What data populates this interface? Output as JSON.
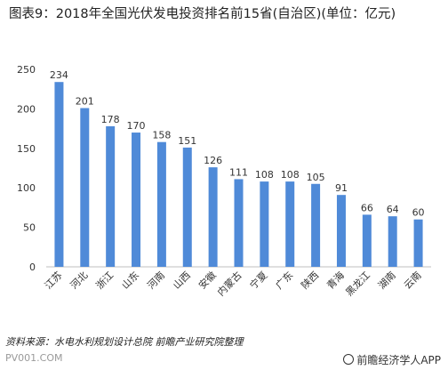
{
  "title": "图表9：2018年全国光伏发电投资排名前15省(自治区)(单位：亿元)",
  "source": "资料来源：水电水利规划设计总院 前瞻产业研究院整理",
  "footer": {
    "site": "PV001.COM",
    "brand": "前瞻经济学人APP"
  },
  "colors": {
    "bar": "#4f8ad8",
    "axis": "#bfbfbf",
    "text": "#333333"
  },
  "chart_data": {
    "type": "bar",
    "title": "图表9：2018年全国光伏发电投资排名前15省(自治区)(单位：亿元)",
    "categories": [
      "江苏",
      "河北",
      "浙江",
      "山东",
      "河南",
      "山西",
      "安徽",
      "内蒙古",
      "宁夏",
      "广东",
      "陕西",
      "青海",
      "黑龙江",
      "湖南",
      "云南"
    ],
    "values": [
      234,
      201,
      178,
      170,
      158,
      151,
      126,
      111,
      108,
      108,
      105,
      91,
      66,
      64,
      60
    ],
    "ylim": [
      0,
      250
    ],
    "yticks": [
      0,
      50,
      100,
      150,
      200,
      250
    ],
    "xlabel": "",
    "ylabel": "",
    "grid": false
  }
}
